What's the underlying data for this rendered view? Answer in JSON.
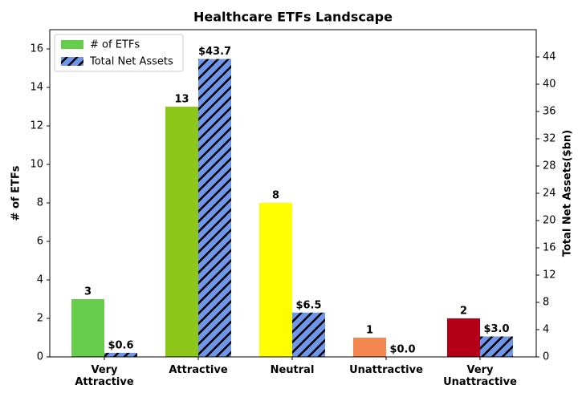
{
  "chart_data": {
    "type": "bar",
    "title": "Healthcare ETFs Landscape",
    "categories": [
      "Very\nAttractive",
      "Attractive",
      "Neutral",
      "Unattractive",
      "Very\nUnattractive"
    ],
    "series": [
      {
        "name": "# of ETFs",
        "color": "#66cc4c",
        "colors": [
          "#66cc4c",
          "#8dc71a",
          "#ffff00",
          "#f4874f",
          "#b5001a"
        ],
        "values": [
          3,
          13,
          8,
          1,
          2
        ]
      },
      {
        "name": "Total Net Assets",
        "color": "#6f96e8",
        "hatch": true,
        "axis": "y2",
        "values": [
          0.6,
          43.7,
          6.5,
          0,
          3.0
        ],
        "value_labels": [
          "$0.6",
          "$43.7",
          "$6.5",
          "$0.0",
          "$3.0"
        ]
      }
    ],
    "ylabel": "# of ETFs",
    "y2label": "Total Net Assets($bn)",
    "ylim": [
      0,
      17
    ],
    "yticks": [
      0,
      2,
      4,
      6,
      8,
      10,
      12,
      14,
      16
    ],
    "y2lim": [
      0,
      48
    ],
    "y2ticks": [
      0,
      4,
      8,
      12,
      16,
      20,
      24,
      28,
      32,
      36,
      40,
      44
    ],
    "legend": "upper left"
  }
}
